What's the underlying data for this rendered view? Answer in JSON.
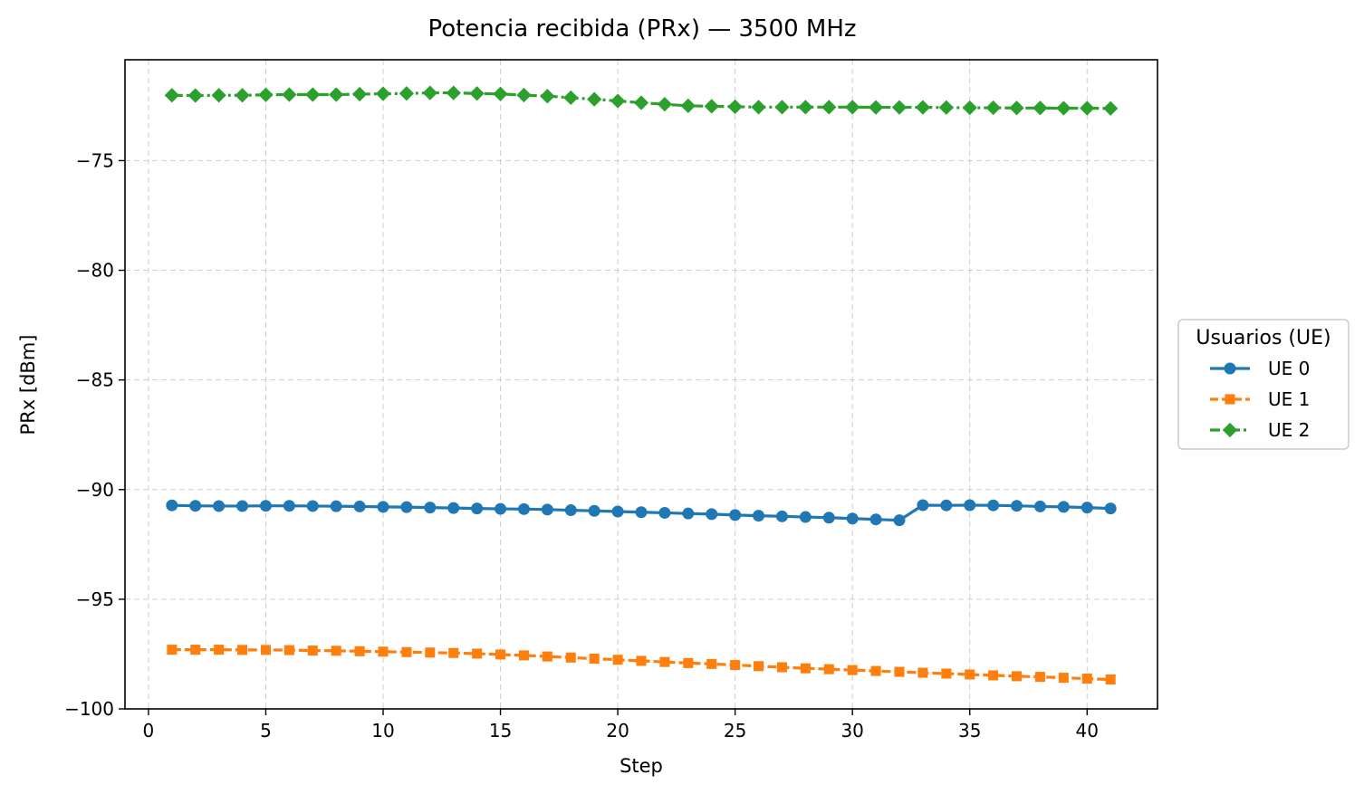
{
  "chart_data": {
    "type": "line",
    "title": "Potencia recibida (PRx) — 3500 MHz",
    "xlabel": "Step",
    "ylabel": "PRx [dBm]",
    "xlim": [
      -1,
      43
    ],
    "ylim": [
      -100,
      -70.4
    ],
    "xticks": [
      0,
      5,
      10,
      15,
      20,
      25,
      30,
      35,
      40
    ],
    "yticks": [
      -100,
      -95,
      -90,
      -85,
      -80,
      -75
    ],
    "grid": true,
    "legend": {
      "title": "Usuarios (UE)",
      "placement": "outside-right"
    },
    "x": [
      1,
      2,
      3,
      4,
      5,
      6,
      7,
      8,
      9,
      10,
      11,
      12,
      13,
      14,
      15,
      16,
      17,
      18,
      19,
      20,
      21,
      22,
      23,
      24,
      25,
      26,
      27,
      28,
      29,
      30,
      31,
      32,
      33,
      34,
      35,
      36,
      37,
      38,
      39,
      40,
      41
    ],
    "series": [
      {
        "name": "UE 0",
        "color": "#1f77b4",
        "marker": "circle",
        "linestyle": "solid",
        "values": [
          -90.72,
          -90.74,
          -90.75,
          -90.75,
          -90.74,
          -90.74,
          -90.75,
          -90.76,
          -90.77,
          -90.79,
          -90.8,
          -90.82,
          -90.84,
          -90.86,
          -90.88,
          -90.89,
          -90.91,
          -90.94,
          -90.97,
          -91.0,
          -91.03,
          -91.06,
          -91.09,
          -91.12,
          -91.16,
          -91.19,
          -91.22,
          -91.25,
          -91.28,
          -91.32,
          -91.36,
          -91.4,
          -90.71,
          -90.72,
          -90.71,
          -90.72,
          -90.74,
          -90.77,
          -90.79,
          -90.82,
          -90.86
        ]
      },
      {
        "name": "UE 1",
        "color": "#ff7f0e",
        "marker": "square",
        "linestyle": "dashed",
        "values": [
          -97.3,
          -97.3,
          -97.3,
          -97.31,
          -97.31,
          -97.32,
          -97.34,
          -97.35,
          -97.37,
          -97.39,
          -97.41,
          -97.43,
          -97.45,
          -97.48,
          -97.52,
          -97.56,
          -97.61,
          -97.66,
          -97.71,
          -97.76,
          -97.81,
          -97.86,
          -97.91,
          -97.95,
          -98.0,
          -98.05,
          -98.1,
          -98.15,
          -98.19,
          -98.23,
          -98.27,
          -98.31,
          -98.35,
          -98.39,
          -98.43,
          -98.47,
          -98.51,
          -98.54,
          -98.58,
          -98.62,
          -98.66
        ]
      },
      {
        "name": "UE 2",
        "color": "#2ca02c",
        "marker": "diamond",
        "linestyle": "dashdot",
        "values": [
          -72.02,
          -72.03,
          -72.02,
          -72.02,
          -72.0,
          -71.99,
          -71.99,
          -71.99,
          -71.97,
          -71.95,
          -71.94,
          -71.91,
          -71.91,
          -71.94,
          -71.96,
          -72.01,
          -72.06,
          -72.13,
          -72.2,
          -72.28,
          -72.36,
          -72.43,
          -72.5,
          -72.52,
          -72.54,
          -72.56,
          -72.56,
          -72.56,
          -72.56,
          -72.56,
          -72.57,
          -72.57,
          -72.57,
          -72.58,
          -72.59,
          -72.59,
          -72.6,
          -72.6,
          -72.61,
          -72.61,
          -72.62
        ]
      }
    ]
  }
}
